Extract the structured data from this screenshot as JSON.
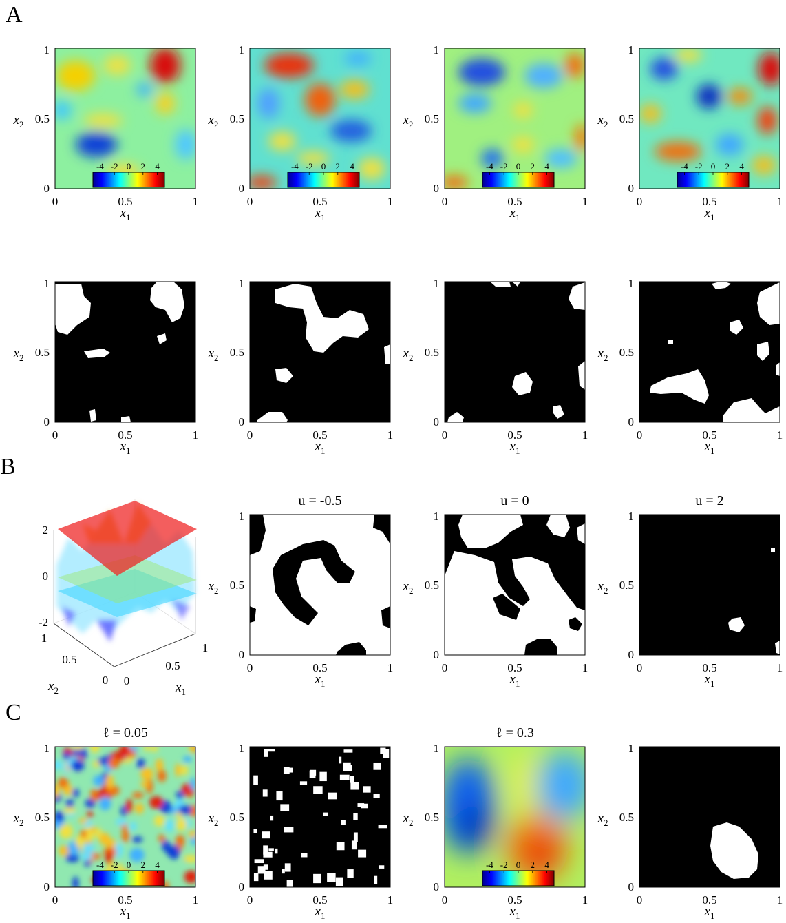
{
  "panels": {
    "A": "A",
    "B": "B",
    "C": "C"
  },
  "axes": {
    "xlabel_base": "x",
    "xlabel_sub": "1",
    "ylabel_base": "x",
    "ylabel_sub": "2",
    "ticks": [
      "0",
      "0.5",
      "1"
    ]
  },
  "colorbar": {
    "ticks": [
      "-4",
      "-2",
      "0",
      "2",
      "4"
    ],
    "range": [
      -5,
      5
    ],
    "colormap": "jet"
  },
  "titles": {
    "b_u_neg05": "u = -0.5",
    "b_u_0": "u = 0",
    "b_u_2": "u = 2",
    "c_l_005": "ℓ = 0.05",
    "c_l_03": "ℓ = 0.3"
  },
  "surface3d": {
    "zticks": [
      "2",
      "0",
      "-2"
    ],
    "x1ticks": [
      "0",
      "0.5",
      "1"
    ],
    "x2ticks": [
      "1",
      "0.5",
      "0"
    ],
    "planes_z": [
      -0.5,
      0,
      2
    ],
    "plane_colors": [
      "#39d4ff",
      "#9ce86a",
      "#ee2020"
    ]
  },
  "colors": {
    "background": "#ffffff",
    "excursion_set": "#ffffff",
    "complement": "#000000"
  }
}
